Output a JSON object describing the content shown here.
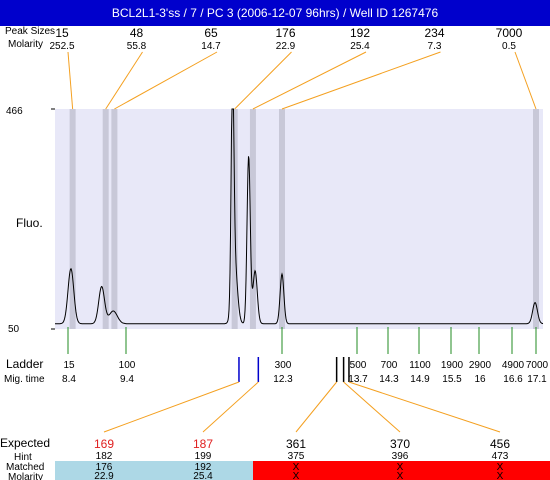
{
  "header": {
    "title": "BCL2L1-3'ss / 7 / PC 3 (2006-12-07 96hrs) / Well ID 1267476"
  },
  "labels": {
    "peak_sizes_overlap": "Peak Sizes",
    "molarity": "Molarity",
    "fluo": "Fluo.",
    "ladder": "Ladder",
    "mig_time": "Mig. time",
    "expected": "Expected",
    "hint": "Hint",
    "matched": "Matched",
    "molarity_bottom": "Molarity"
  },
  "colors": {
    "header_bg": "#0000cc",
    "plot_bg": "#e8e8f8",
    "peak_band": "#c8c8d8",
    "callout_line": "#f4a020",
    "ladder_tick": "#228b22",
    "marker_tick": "#0000cc",
    "expected_highlight": "#e02020",
    "matched_bg": "#add8e6",
    "unmatched_bg": "#ff0000"
  },
  "chart_data": {
    "type": "line",
    "title": "",
    "ylabel": "Fluo.",
    "ylim": [
      50,
      466
    ],
    "y_ticks": [
      "466",
      "50"
    ],
    "peaks": [
      {
        "size": "15",
        "molarity": "252.5",
        "time": 8.48
      },
      {
        "size": "48",
        "molarity": "55.8",
        "time": 9.05
      },
      {
        "size": "65",
        "molarity": "14.7",
        "time": 9.2
      },
      {
        "size": "176",
        "molarity": "22.9",
        "time": 11.42
      },
      {
        "size": "192",
        "molarity": "25.4",
        "time": 11.76
      },
      {
        "size": "234",
        "molarity": "7.3",
        "time": 12.3
      },
      {
        "size": "7000",
        "molarity": "0.5",
        "time": 17.1
      }
    ],
    "trace": {
      "baseline": 60,
      "peaks": [
        {
          "time": 8.45,
          "height": 164,
          "width": 0.05
        },
        {
          "time": 8.98,
          "height": 130,
          "width": 0.05
        },
        {
          "time": 9.18,
          "height": 84,
          "width": 0.07
        },
        {
          "time": 11.38,
          "height": 466,
          "width": 0.025
        },
        {
          "time": 11.42,
          "height": 175,
          "width": 0.05
        },
        {
          "time": 11.68,
          "height": 377,
          "width": 0.03
        },
        {
          "time": 11.8,
          "height": 160,
          "width": 0.04
        },
        {
          "time": 12.3,
          "height": 154,
          "width": 0.035
        },
        {
          "time": 17.08,
          "height": 100,
          "width": 0.05
        }
      ]
    },
    "ladder": [
      {
        "size": "15",
        "time": "8.4"
      },
      {
        "size": "100",
        "time": "9.4"
      },
      {
        "size": "300",
        "time": "12.3"
      },
      {
        "size": "500",
        "time": "13.7"
      },
      {
        "size": "700",
        "time": "14.3"
      },
      {
        "size": "1100",
        "time": "14.9"
      },
      {
        "size": "1900",
        "time": "15.5"
      },
      {
        "size": "2900",
        "time": "16"
      },
      {
        "size": "4900",
        "time": "16.6"
      },
      {
        "size": "7000",
        "time": "17.1"
      }
    ],
    "expected": [
      {
        "expected": "169",
        "hint": "182",
        "matched": "176",
        "molarity": "22.9",
        "highlight": true,
        "status": "matched",
        "marker_time": 11.5
      },
      {
        "expected": "187",
        "hint": "199",
        "matched": "192",
        "molarity": "25.4",
        "highlight": true,
        "status": "matched",
        "marker_time": 11.86
      },
      {
        "expected": "361",
        "hint": "375",
        "matched": "X",
        "molarity": "X",
        "highlight": false,
        "status": "unmatched",
        "marker_time": 13.32
      },
      {
        "expected": "370",
        "hint": "396",
        "matched": "X",
        "molarity": "X",
        "highlight": false,
        "status": "unmatched",
        "marker_time": 13.45
      },
      {
        "expected": "456",
        "hint": "473",
        "matched": "X",
        "molarity": "X",
        "highlight": false,
        "status": "unmatched",
        "marker_time": 13.55
      }
    ]
  }
}
